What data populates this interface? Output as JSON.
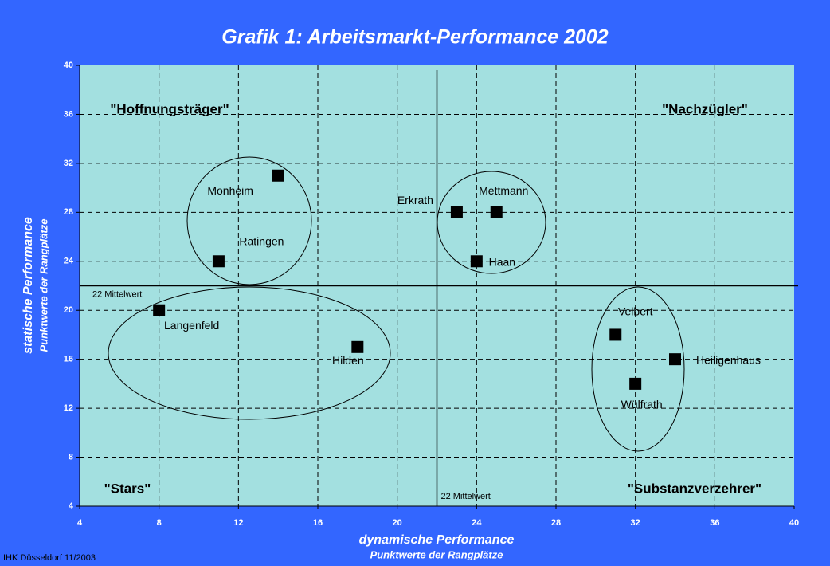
{
  "chart_data": {
    "type": "scatter",
    "title": "Grafik 1: Arbeitsmarkt-Performance 2002",
    "x_label": "dynamische Performance",
    "x_sublabel": "Punktwerte der Rangplätze",
    "y_label": "statische Performance",
    "y_sublabel": "Punktwerte der Rangplätze",
    "xlim": [
      4,
      40
    ],
    "ylim": [
      4,
      40
    ],
    "xticks": [
      4,
      8,
      12,
      16,
      20,
      24,
      28,
      32,
      36,
      40
    ],
    "yticks": [
      4,
      8,
      12,
      16,
      20,
      24,
      28,
      32,
      36,
      40
    ],
    "grid": true,
    "series": [
      {
        "color": "#000000",
        "labels": [
          "Monheim",
          "Ratingen",
          "Erkrath",
          "Mettmann",
          "Haan",
          "Langenfeld",
          "Hilden",
          "Velbert",
          "Heiligenhaus",
          "Wülfrath"
        ],
        "x": [
          14,
          11,
          23,
          25,
          24,
          8,
          18,
          31,
          34,
          32
        ],
        "values": [
          31,
          24,
          28,
          28,
          24,
          20,
          17,
          18,
          16,
          14
        ]
      }
    ],
    "mean_lines": [
      {
        "axis": "y",
        "value": 22,
        "label": "22 Mittelwert"
      },
      {
        "axis": "x",
        "value": 22,
        "label": "22 Mittelwert"
      }
    ],
    "quadrant_labels": [
      "\"Hoffnungsträger\"",
      "\"Nachzügler\"",
      "\"Stars\"",
      "\"Substanzverzehrer\""
    ],
    "footer": "IHK Düsseldorf 11/2003"
  }
}
